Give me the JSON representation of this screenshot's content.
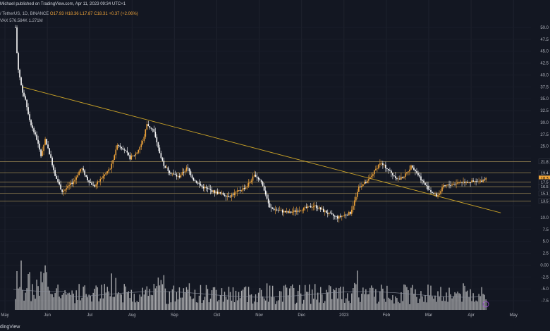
{
  "header": {
    "published": "Michael published on TradingView.com, Apr 11, 2023 09:34 UTC+1",
    "symbol": "/ TetherUS, 1D, BINANCE",
    "ohlc": "O17.93 H18.36 L17.87 C18.31 +0.37 (+2.06%)",
    "volume_label": "VAX",
    "volume_values": "576.584K 1.271M"
  },
  "footer": {
    "brand": "dingView"
  },
  "colors": {
    "background": "#131722",
    "candle_up": "#f0a43a",
    "candle_down": "#ffffff",
    "trendline": "#c9a227",
    "level": "#e0c06a",
    "price_tag": "#f0a43a",
    "volume": "#d8d8d8",
    "axis_text": "#b2b5be"
  },
  "chart_data": {
    "type": "candlestick",
    "x_ticks": [
      "May",
      "Jun",
      "Jul",
      "Aug",
      "Sep",
      "Oct",
      "Nov",
      "Dec",
      "2023",
      "Feb",
      "Mar",
      "Apr",
      "May"
    ],
    "y_ticks": [
      50.0,
      47.5,
      45.0,
      42.5,
      40.0,
      37.5,
      35.0,
      32.5,
      30.0,
      27.5,
      25.0,
      22.5,
      20.0,
      17.5,
      15.0,
      12.5,
      10.0,
      7.5,
      5.0,
      2.5,
      0.0,
      -2.5,
      -5.0,
      -7.5
    ],
    "y_labels_shown": [
      "50.0",
      "47.5",
      "45.0",
      "42.5",
      "40.0",
      "37.5",
      "35.0",
      "32.5",
      "30.0",
      "27.5",
      "25.0",
      "",
      "",
      "",
      "",
      "",
      "10.0",
      "7.5",
      "5.0",
      "2.5",
      "0.00",
      "-2.5",
      "-5.0",
      "-7.5"
    ],
    "price_tags": [
      "21.8",
      "19.4",
      "18.3",
      "17.5",
      "16.5",
      "15.1",
      "13.5"
    ],
    "levels": [
      21.8,
      19.4,
      17.5,
      16.5,
      15.1,
      13.5
    ],
    "last_price": 18.31,
    "trendline": {
      "from": {
        "month_index": 0.4,
        "price": 37.5
      },
      "to": {
        "month_index": 11.7,
        "price": 11.0
      }
    },
    "price_path": [
      [
        0.25,
        50.0
      ],
      [
        0.3,
        42.0
      ],
      [
        0.4,
        37.0
      ],
      [
        0.5,
        34.0
      ],
      [
        0.6,
        30.0
      ],
      [
        0.75,
        26.5
      ],
      [
        0.85,
        23.0
      ],
      [
        0.95,
        26.5
      ],
      [
        1.05,
        23.5
      ],
      [
        1.2,
        18.5
      ],
      [
        1.35,
        15.5
      ],
      [
        1.5,
        16.5
      ],
      [
        1.65,
        18.0
      ],
      [
        1.8,
        20.5
      ],
      [
        1.95,
        18.0
      ],
      [
        2.1,
        16.5
      ],
      [
        2.3,
        18.5
      ],
      [
        2.5,
        20.5
      ],
      [
        2.65,
        25.5
      ],
      [
        2.8,
        24.5
      ],
      [
        2.95,
        22.5
      ],
      [
        3.1,
        23.5
      ],
      [
        3.25,
        26.0
      ],
      [
        3.35,
        29.5
      ],
      [
        3.5,
        28.5
      ],
      [
        3.6,
        25.0
      ],
      [
        3.75,
        21.0
      ],
      [
        3.9,
        19.5
      ],
      [
        4.1,
        18.5
      ],
      [
        4.3,
        20.5
      ],
      [
        4.45,
        18.0
      ],
      [
        4.65,
        16.5
      ],
      [
        4.9,
        15.5
      ],
      [
        5.1,
        15.0
      ],
      [
        5.3,
        14.5
      ],
      [
        5.5,
        15.5
      ],
      [
        5.7,
        16.5
      ],
      [
        5.9,
        19.0
      ],
      [
        6.05,
        17.5
      ],
      [
        6.15,
        15.0
      ],
      [
        6.25,
        12.0
      ],
      [
        6.45,
        11.5
      ],
      [
        6.7,
        11.0
      ],
      [
        6.9,
        11.5
      ],
      [
        7.1,
        12.0
      ],
      [
        7.3,
        12.5
      ],
      [
        7.5,
        11.5
      ],
      [
        7.7,
        10.5
      ],
      [
        7.85,
        10.0
      ],
      [
        8.0,
        10.5
      ],
      [
        8.15,
        11.0
      ],
      [
        8.25,
        13.5
      ],
      [
        8.35,
        16.5
      ],
      [
        8.55,
        17.5
      ],
      [
        8.7,
        19.5
      ],
      [
        8.85,
        21.5
      ],
      [
        9.0,
        20.5
      ],
      [
        9.15,
        19.0
      ],
      [
        9.3,
        18.0
      ],
      [
        9.45,
        19.0
      ],
      [
        9.6,
        21.0
      ],
      [
        9.75,
        19.0
      ],
      [
        9.9,
        17.0
      ],
      [
        10.05,
        15.5
      ],
      [
        10.2,
        14.5
      ],
      [
        10.35,
        16.5
      ],
      [
        10.55,
        17.0
      ],
      [
        10.75,
        17.5
      ],
      [
        10.95,
        17.5
      ],
      [
        11.2,
        17.5
      ],
      [
        11.35,
        18.3
      ]
    ]
  }
}
